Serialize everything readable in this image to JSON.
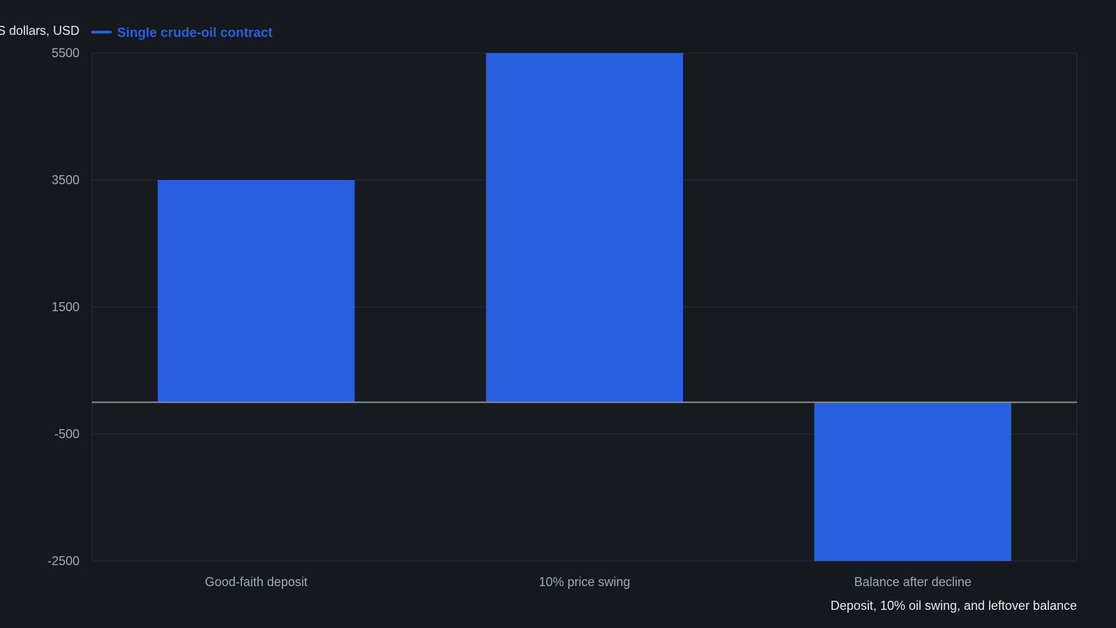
{
  "chart_data": {
    "type": "bar",
    "categories": [
      "Good-faith deposit",
      "10% price swing",
      "Balance after decline"
    ],
    "series": [
      {
        "name": "Single crude-oil contract",
        "values": [
          3500,
          5500,
          -2500
        ]
      }
    ],
    "ylabel": "US dollars, USD",
    "xlabel": "Deposit, 10% oil swing, and leftover balance",
    "ylim": [
      -2500,
      5500
    ],
    "yticks": [
      "5500",
      "3500",
      "1500",
      "-500",
      "-2500"
    ],
    "grid": true,
    "legend_position": "top-left"
  },
  "colors": {
    "background": "#15181d",
    "series": "#2660e0",
    "grid": "#2a2e35",
    "baseline": "#8a8f98",
    "tick_text": "#a3a8b0",
    "label_text": "#e6e8eb"
  }
}
